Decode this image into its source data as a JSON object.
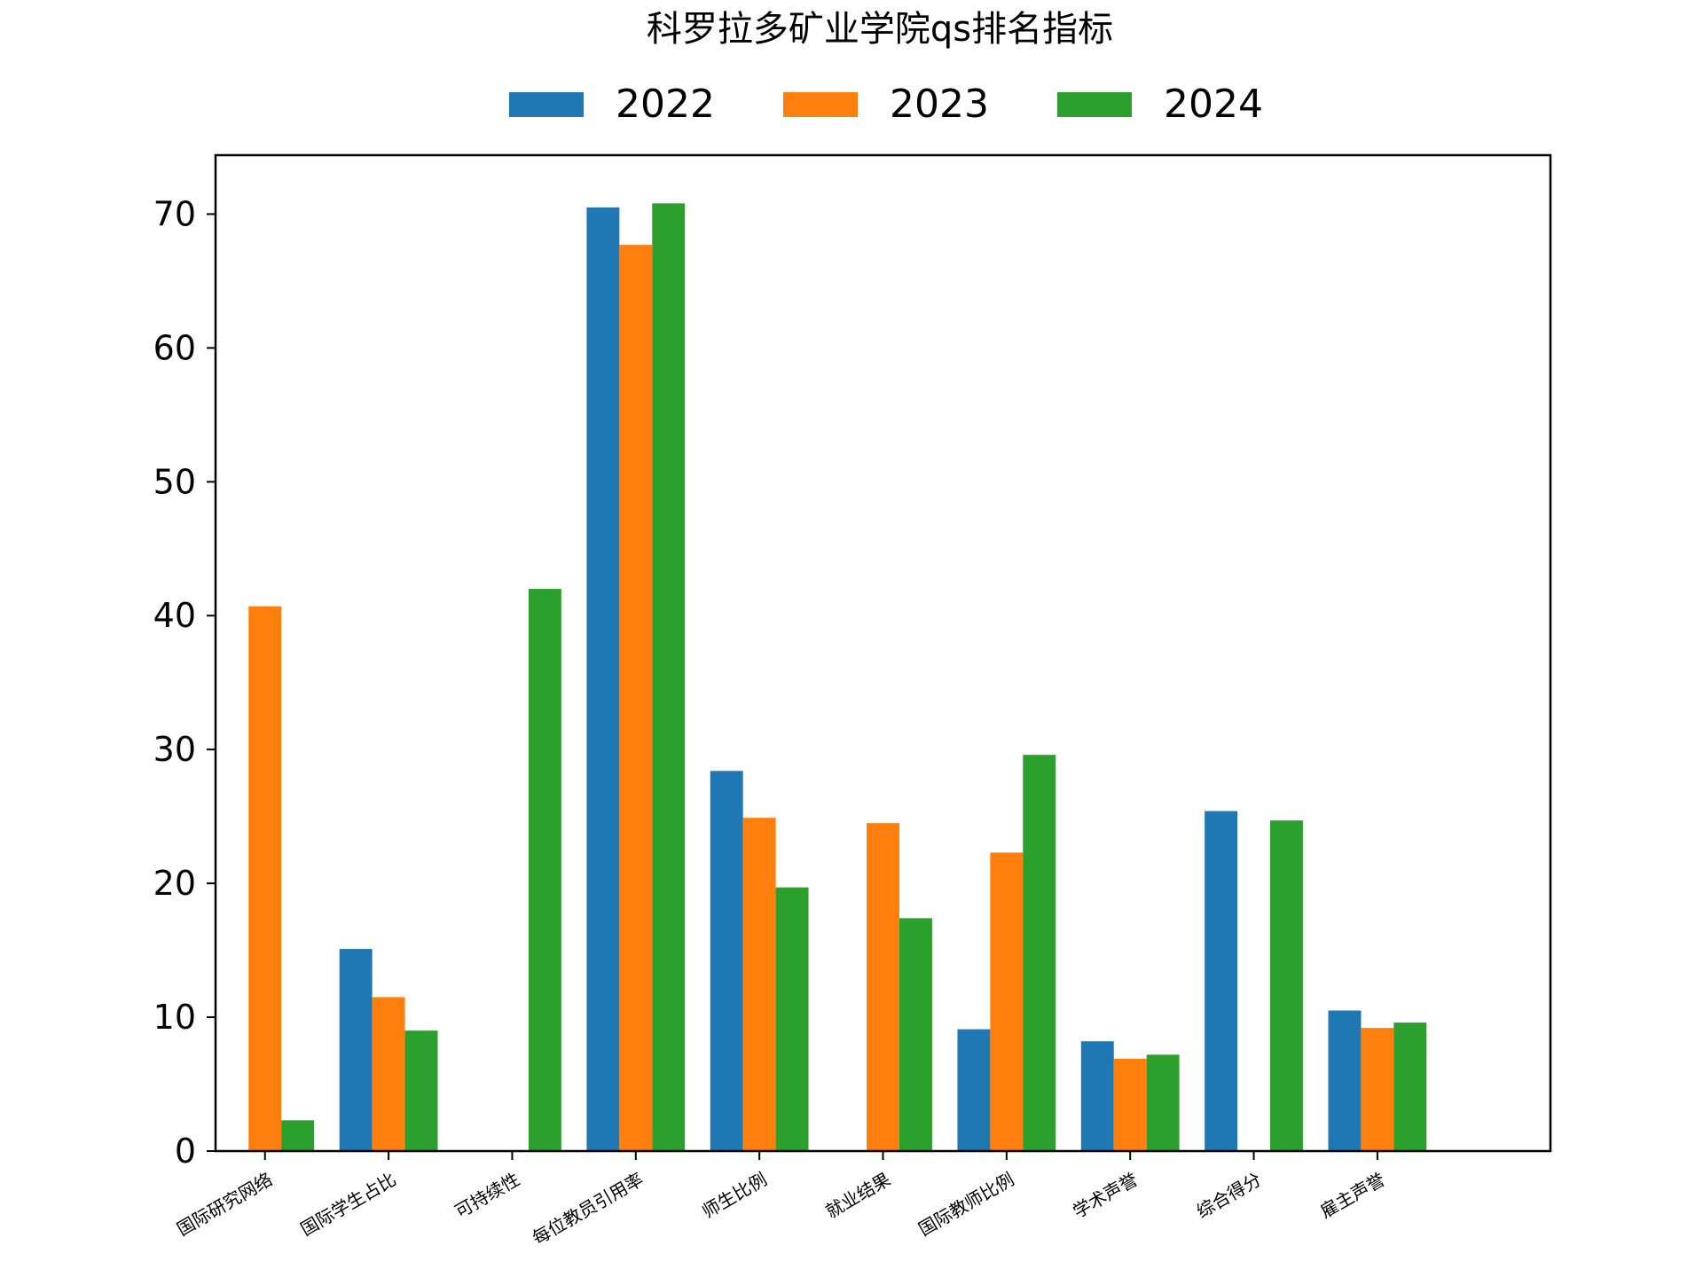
{
  "chart_data": {
    "type": "bar",
    "title": "科罗拉多矿业学院qs排名指标",
    "xlabel": "",
    "ylabel": "",
    "ylim": [
      0,
      74.4
    ],
    "yticks": [
      0,
      10,
      20,
      30,
      40,
      50,
      60,
      70
    ],
    "grid": false,
    "legend_position": "top-center",
    "categories": [
      "国际研究网络",
      "国际学生占比",
      "可持续性",
      "每位教员引用率",
      "师生比例",
      "就业结果",
      "国际教师比例",
      "学术声誉",
      "综合得分",
      "雇主声誉"
    ],
    "series": [
      {
        "name": "2022",
        "color": "#1f77b4",
        "values": [
          null,
          15.1,
          null,
          70.5,
          28.4,
          null,
          9.1,
          8.2,
          25.4,
          10.5
        ]
      },
      {
        "name": "2023",
        "color": "#ff7f0e",
        "values": [
          40.7,
          11.5,
          null,
          67.7,
          24.9,
          24.5,
          22.3,
          6.9,
          null,
          9.2
        ]
      },
      {
        "name": "2024",
        "color": "#2ca02c",
        "values": [
          2.3,
          9.0,
          42.0,
          70.8,
          19.7,
          17.4,
          29.6,
          7.2,
          24.7,
          9.6
        ]
      }
    ]
  }
}
